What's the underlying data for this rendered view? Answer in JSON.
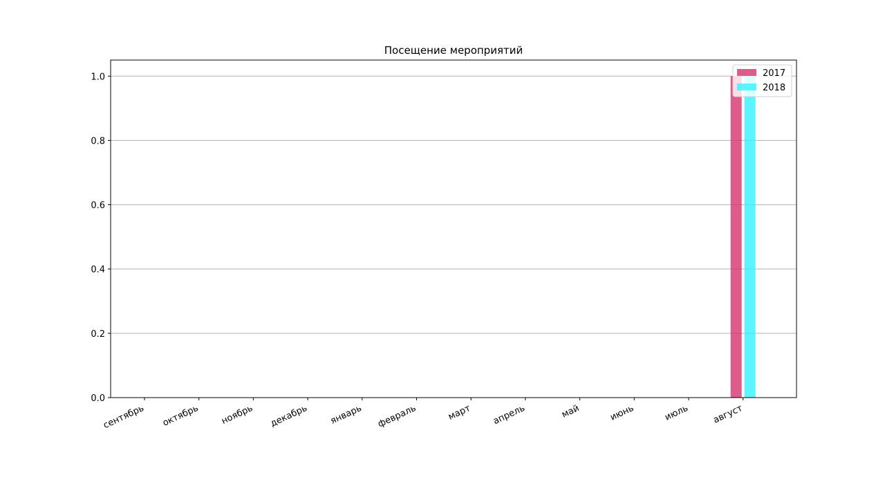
{
  "chart_data": {
    "type": "bar",
    "title": "Посещение мероприятий",
    "xlabel": "",
    "ylabel": "",
    "categories": [
      "сентябрь",
      "октябрь",
      "ноябрь",
      "декабрь",
      "январь",
      "февраль",
      "март",
      "апрель",
      "май",
      "июнь",
      "июль",
      "август"
    ],
    "series": [
      {
        "name": "2017",
        "color": "#d6336c",
        "values": [
          0,
          0,
          0,
          0,
          0,
          0,
          0,
          0,
          0,
          0,
          0,
          1
        ]
      },
      {
        "name": "2018",
        "color": "#33f3ff",
        "values": [
          0,
          0,
          0,
          0,
          0,
          0,
          0,
          0,
          0,
          0,
          0,
          1
        ]
      }
    ],
    "ylim": [
      0,
      1.05
    ],
    "yticks": [
      "0.0",
      "0.2",
      "0.4",
      "0.6",
      "0.8",
      "1.0"
    ],
    "grid": "horizontal",
    "legend": "top-right"
  }
}
